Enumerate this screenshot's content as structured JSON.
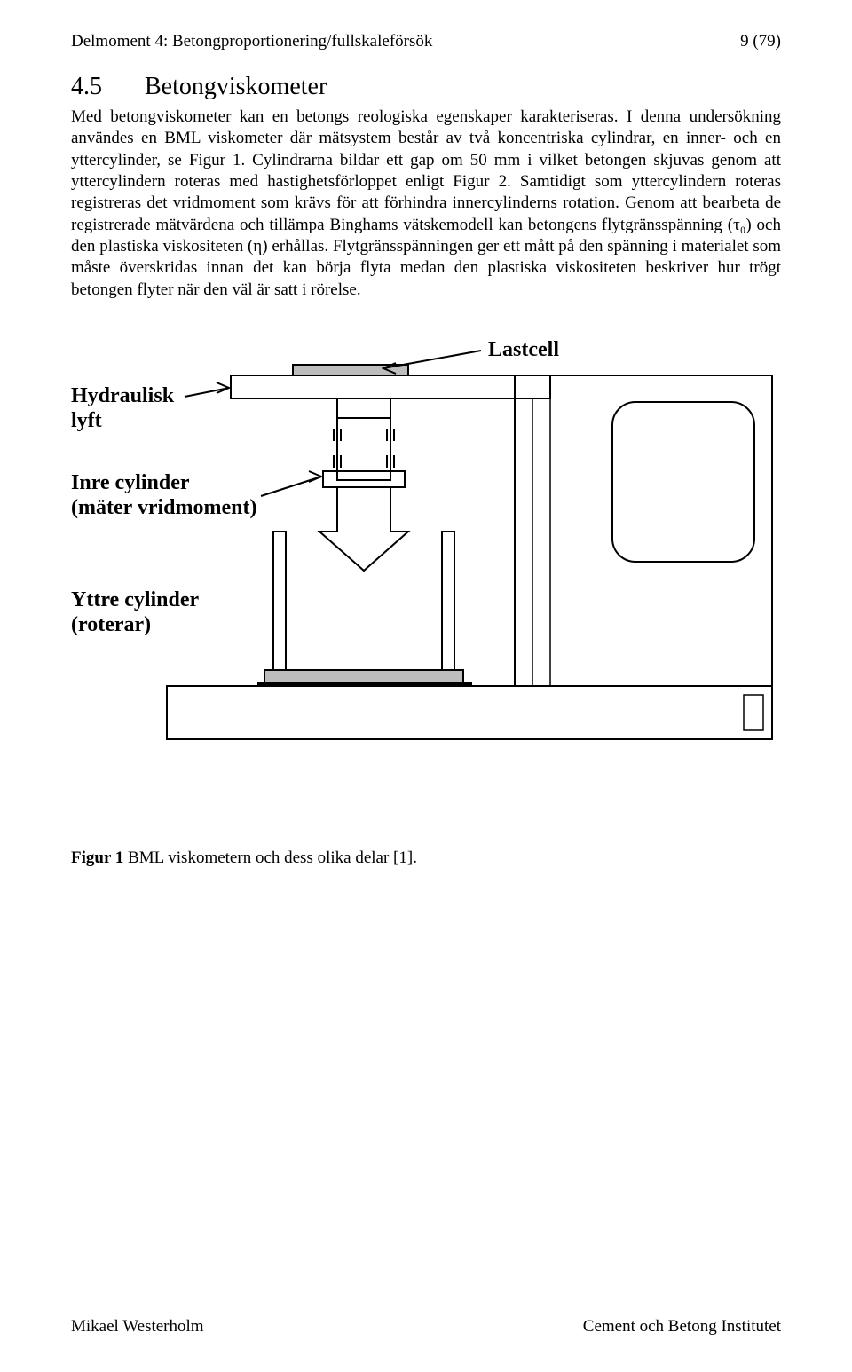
{
  "header": {
    "left": "Delmoment 4: Betongproportionering/fullskaleförsök",
    "right": "9 (79)"
  },
  "section": {
    "number": "4.5",
    "title": "Betongviskometer"
  },
  "paragraph": "Med betongviskometer kan en betongs reologiska egenskaper karakteriseras. I denna undersökning användes en BML viskometer där mätsystem består av två koncentriska cylindrar, en inner- och en yttercylinder, se Figur 1. Cylindrarna bildar ett gap om 50 mm i vilket betongen skjuvas genom att yttercylindern roteras med hastighetsförloppet enligt Figur 2. Samtidigt som yttercylindern roteras registreras det vridmoment som krävs för att förhindra innercylinderns rotation. Genom att bearbeta de registrerade mätvärdena och tillämpa Binghams vätskemodell kan betongens flytgränsspänning (τ₀) och den plastiska viskositeten (η) erhållas. Flytgränsspänningen ger ett mått på den spänning i materialet som måste överskridas innan det kan börja flyta medan den plastiska viskositeten beskriver hur trögt betongen flyter när den väl är satt i rörelse.",
  "figure": {
    "labels": {
      "lastcell": "Lastcell",
      "hydraulisk_line1": "Hydraulisk",
      "hydraulisk_line2": "lyft",
      "inre_line1": "Inre cylinder",
      "inre_line2": "(mäter vridmoment)",
      "yttre_line1": "Yttre cylinder",
      "yttre_line2": "(roterar)"
    },
    "style": {
      "stroke": "#000000",
      "stroke_width_main": 2,
      "stroke_width_thin": 1.5,
      "fill_bg": "#ffffff",
      "fill_gray": "#bdbdbd",
      "label_fontsize": 24,
      "label_fontweight": "bold"
    },
    "caption_bold": "Figur 1",
    "caption_rest": " BML viskometern och dess olika delar [1]."
  },
  "footer": {
    "left": "Mikael Westerholm",
    "right": "Cement och Betong Institutet"
  }
}
